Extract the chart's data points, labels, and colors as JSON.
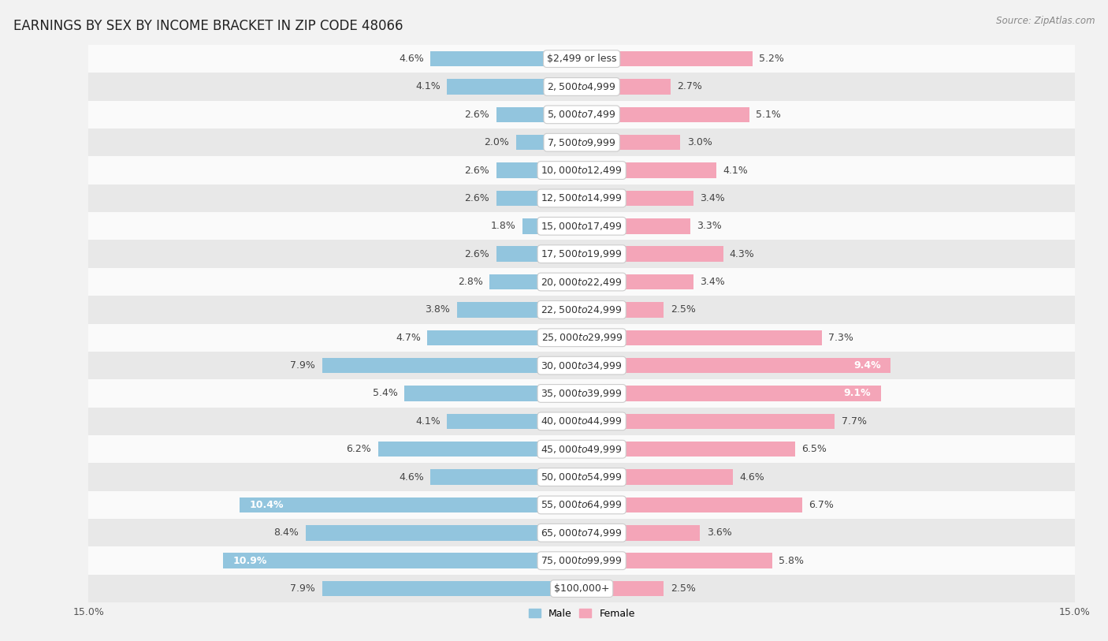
{
  "title": "EARNINGS BY SEX BY INCOME BRACKET IN ZIP CODE 48066",
  "source": "Source: ZipAtlas.com",
  "categories": [
    "$2,499 or less",
    "$2,500 to $4,999",
    "$5,000 to $7,499",
    "$7,500 to $9,999",
    "$10,000 to $12,499",
    "$12,500 to $14,999",
    "$15,000 to $17,499",
    "$17,500 to $19,999",
    "$20,000 to $22,499",
    "$22,500 to $24,999",
    "$25,000 to $29,999",
    "$30,000 to $34,999",
    "$35,000 to $39,999",
    "$40,000 to $44,999",
    "$45,000 to $49,999",
    "$50,000 to $54,999",
    "$55,000 to $64,999",
    "$65,000 to $74,999",
    "$75,000 to $99,999",
    "$100,000+"
  ],
  "male_values": [
    4.6,
    4.1,
    2.6,
    2.0,
    2.6,
    2.6,
    1.8,
    2.6,
    2.8,
    3.8,
    4.7,
    7.9,
    5.4,
    4.1,
    6.2,
    4.6,
    10.4,
    8.4,
    10.9,
    7.9
  ],
  "female_values": [
    5.2,
    2.7,
    5.1,
    3.0,
    4.1,
    3.4,
    3.3,
    4.3,
    3.4,
    2.5,
    7.3,
    9.4,
    9.1,
    7.7,
    6.5,
    4.6,
    6.7,
    3.6,
    5.8,
    2.5
  ],
  "male_color": "#92c5de",
  "female_color": "#f4a5b8",
  "background_color": "#f2f2f2",
  "row_bg_white": "#fafafa",
  "row_bg_gray": "#e8e8e8",
  "xlim": 15.0,
  "title_fontsize": 12,
  "label_fontsize": 9,
  "cat_fontsize": 9,
  "bar_height": 0.55,
  "axis_label_fontsize": 9,
  "value_label_threshold": 9.0
}
